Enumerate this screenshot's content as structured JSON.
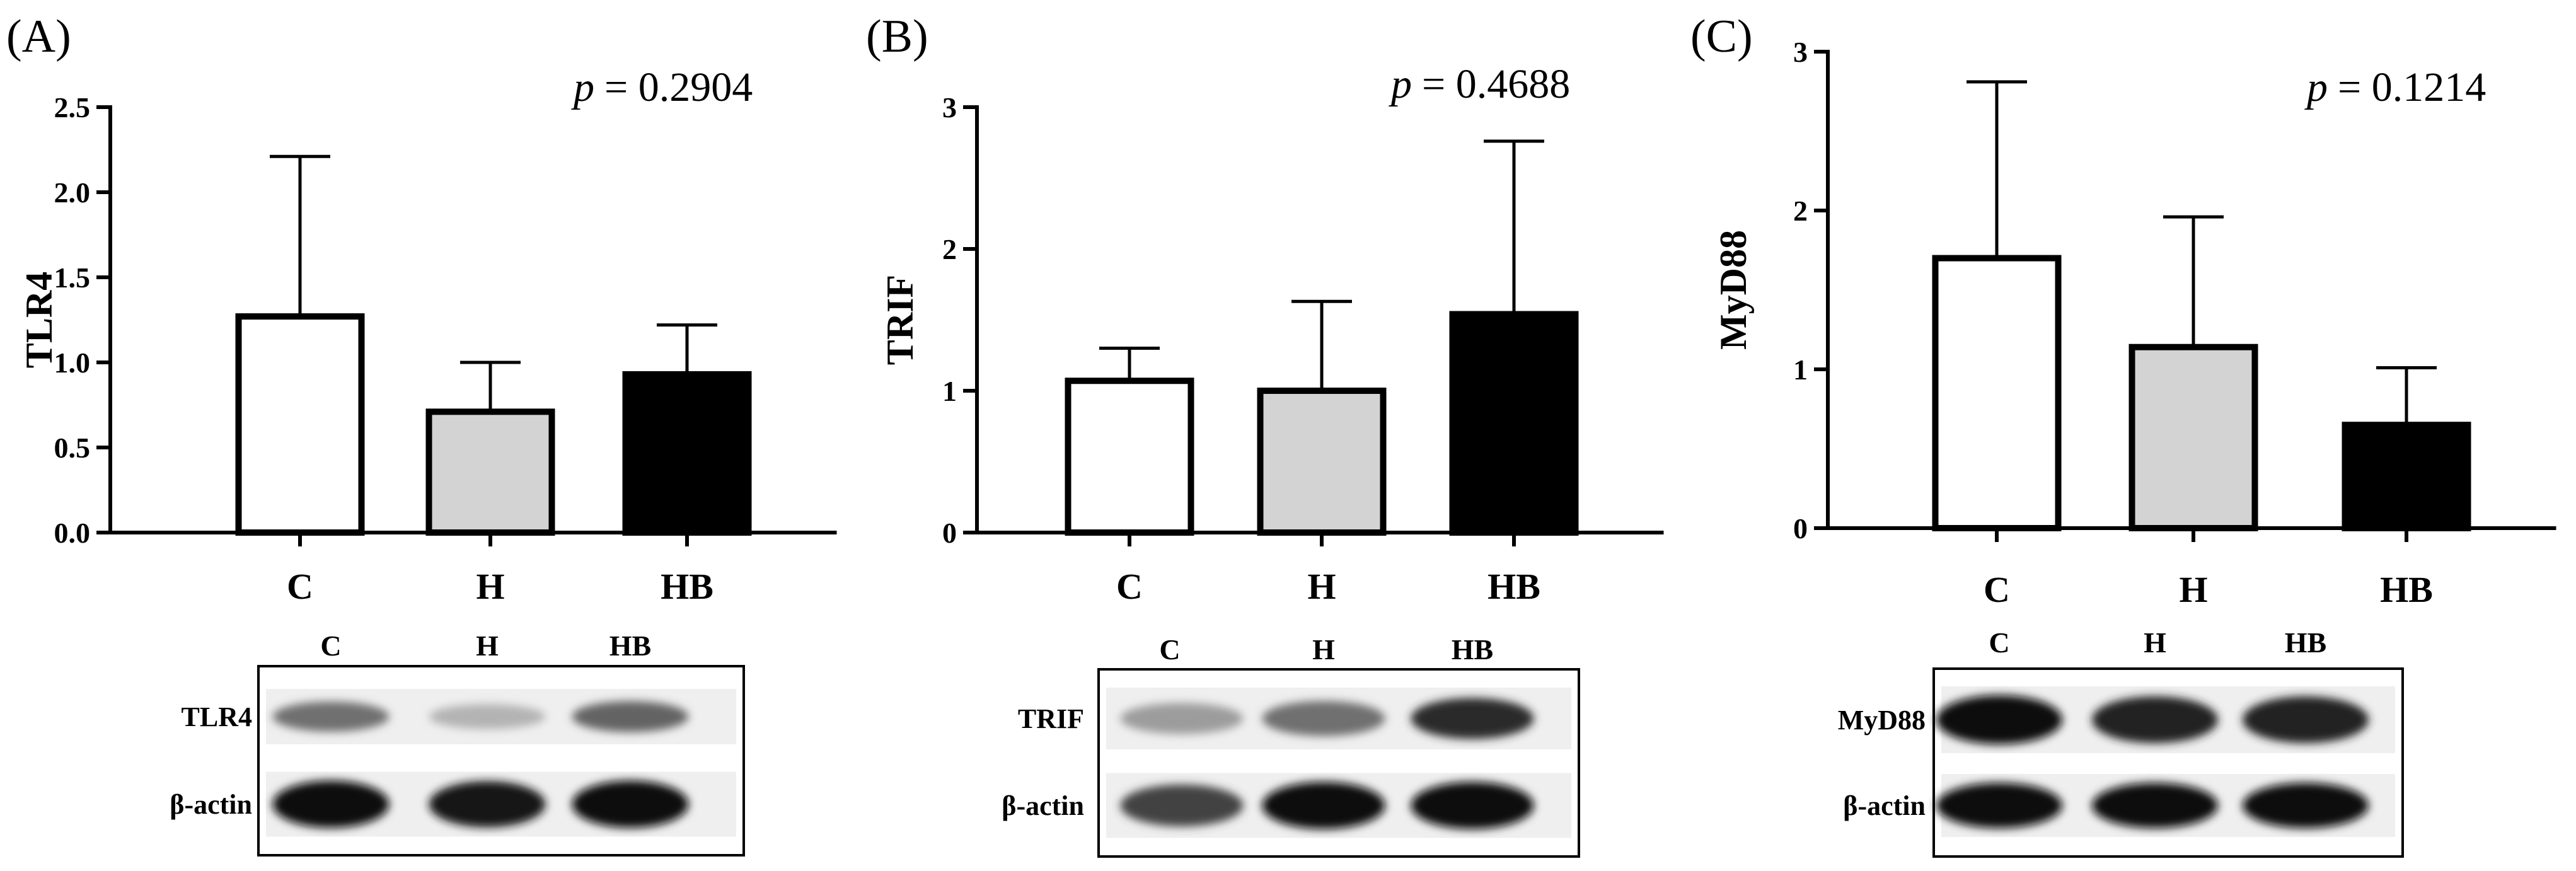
{
  "panels": [
    {
      "label": "(A)",
      "p_label": "p",
      "p_value": "= 0.2904"
    },
    {
      "label": "(B)",
      "p_label": "p",
      "p_value": "= 0.4688"
    },
    {
      "label": "(C)",
      "p_label": "p",
      "p_value": "= 0.1214"
    }
  ],
  "chart_data": [
    {
      "type": "bar",
      "title": "",
      "ylabel": "TLR4",
      "xlabel": "",
      "categories": [
        "C",
        "H",
        "HB"
      ],
      "values": [
        1.27,
        0.71,
        0.93
      ],
      "error_upper": [
        2.21,
        1.0,
        1.22
      ],
      "ylim": [
        0,
        2.5
      ],
      "yticks": [
        0.0,
        0.5,
        1.0,
        1.5,
        2.0,
        2.5
      ],
      "ytick_labels": [
        "0.0",
        "0.5",
        "1.0",
        "1.5",
        "2.0",
        "2.5"
      ],
      "bar_colors": [
        "#ffffff",
        "#d3d3d3",
        "#000000"
      ],
      "annotation": "p = 0.2904",
      "grid": false
    },
    {
      "type": "bar",
      "title": "",
      "ylabel": "TRIF",
      "xlabel": "",
      "categories": [
        "C",
        "H",
        "HB"
      ],
      "values": [
        1.07,
        1.0,
        1.54
      ],
      "error_upper": [
        1.3,
        1.63,
        2.76
      ],
      "ylim": [
        0,
        3
      ],
      "yticks": [
        0,
        1,
        2,
        3
      ],
      "ytick_labels": [
        "0",
        "1",
        "2",
        "3"
      ],
      "bar_colors": [
        "#ffffff",
        "#d3d3d3",
        "#000000"
      ],
      "annotation": "p = 0.4688",
      "grid": false
    },
    {
      "type": "bar",
      "title": "",
      "ylabel": "MyD88",
      "xlabel": "",
      "categories": [
        "C",
        "H",
        "HB"
      ],
      "values": [
        1.7,
        1.14,
        0.65
      ],
      "error_upper": [
        2.81,
        1.96,
        1.01
      ],
      "ylim": [
        0,
        3
      ],
      "yticks": [
        0,
        1,
        2,
        3
      ],
      "ytick_labels": [
        "0",
        "1",
        "2",
        "3"
      ],
      "bar_colors": [
        "#ffffff",
        "#d3d3d3",
        "#000000"
      ],
      "annotation": "p = 0.1214",
      "grid": false
    }
  ],
  "blots": [
    {
      "lanes": [
        "C",
        "H",
        "HB"
      ],
      "rows": [
        {
          "name": "TLR4",
          "intensity": [
            0.55,
            0.25,
            0.6
          ]
        },
        {
          "name": "β-actin",
          "intensity": [
            1.0,
            0.95,
            1.0
          ]
        }
      ]
    },
    {
      "lanes": [
        "C",
        "H",
        "HB"
      ],
      "rows": [
        {
          "name": "TRIF",
          "intensity": [
            0.35,
            0.55,
            0.85
          ]
        },
        {
          "name": "β-actin",
          "intensity": [
            0.75,
            1.0,
            1.0
          ]
        }
      ]
    },
    {
      "lanes": [
        "C",
        "H",
        "HB"
      ],
      "rows": [
        {
          "name": "MyD88",
          "intensity": [
            1.0,
            0.9,
            0.9
          ]
        },
        {
          "name": "β-actin",
          "intensity": [
            1.0,
            1.0,
            1.0
          ]
        }
      ]
    }
  ]
}
